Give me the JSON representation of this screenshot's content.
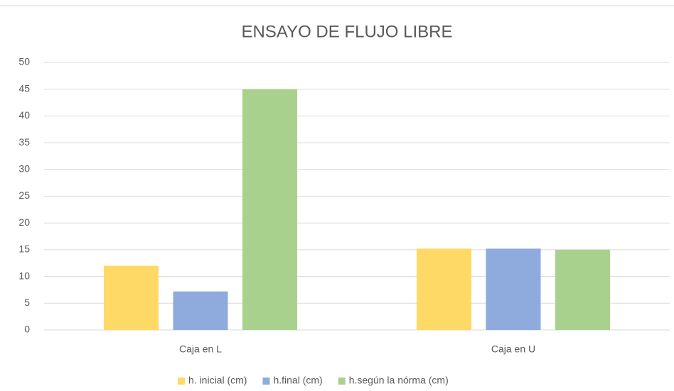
{
  "chart_data": {
    "type": "bar",
    "title": "ENSAYO DE FLUJO LIBRE",
    "categories": [
      "Caja en L",
      "Caja en U"
    ],
    "series": [
      {
        "name": "h. inicial (cm)",
        "color": "#ffd966",
        "values": [
          12,
          15.2
        ]
      },
      {
        "name": "h.final (cm)",
        "color": "#8faadc",
        "values": [
          7.2,
          15.2
        ]
      },
      {
        "name": "h.según la nórma (cm)",
        "color": "#a9d18e",
        "values": [
          45,
          15
        ]
      }
    ],
    "ylim": [
      0,
      50
    ],
    "yticks": [
      0,
      5,
      10,
      15,
      20,
      25,
      30,
      35,
      40,
      45,
      50
    ],
    "grid": true,
    "legend": "bottom"
  }
}
